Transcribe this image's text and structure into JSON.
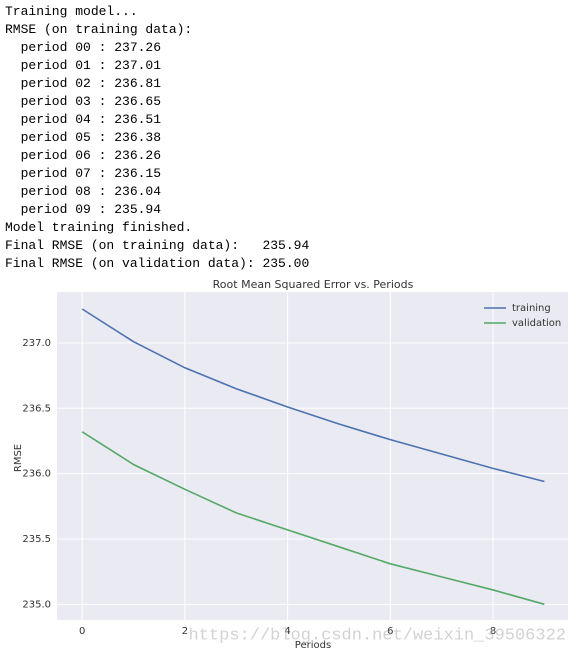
{
  "log": {
    "lines": [
      "Training model...",
      "RMSE (on training data):",
      "  period 00 : 237.26",
      "  period 01 : 237.01",
      "  period 02 : 236.81",
      "  period 03 : 236.65",
      "  period 04 : 236.51",
      "  period 05 : 236.38",
      "  period 06 : 236.26",
      "  period 07 : 236.15",
      "  period 08 : 236.04",
      "  period 09 : 235.94",
      "Model training finished.",
      "Final RMSE (on training data):   235.94",
      "Final RMSE (on validation data): 235.00"
    ]
  },
  "chart_data": {
    "type": "line",
    "title": "Root Mean Squared Error vs. Periods",
    "x_label": "Periods",
    "y_label": "RMSE",
    "x": [
      0,
      1,
      2,
      3,
      4,
      5,
      6,
      7,
      8,
      9
    ],
    "series": [
      {
        "name": "training",
        "color": "#4c72b0",
        "values": [
          237.26,
          237.01,
          236.81,
          236.65,
          236.51,
          236.38,
          236.26,
          236.15,
          236.04,
          235.94
        ]
      },
      {
        "name": "validation",
        "color": "#55a868",
        "values": [
          236.32,
          236.07,
          235.88,
          235.7,
          235.57,
          235.44,
          235.31,
          235.21,
          235.11,
          235.0
        ]
      }
    ],
    "xlim": [
      -0.49,
      9.46
    ],
    "ylim": [
      234.88,
      237.39
    ],
    "xticks": [
      0,
      2,
      4,
      6,
      8
    ],
    "yticks": [
      {
        "value": 235.0,
        "label": "235.0"
      },
      {
        "value": 235.5,
        "label": "235.5"
      },
      {
        "value": 236.0,
        "label": "236.0"
      },
      {
        "value": 236.5,
        "label": "236.5"
      },
      {
        "value": 237.0,
        "label": "237.0"
      }
    ],
    "grid": true,
    "legend": "upper right"
  },
  "watermark": "https://blog.csdn.net/weixin_39506322"
}
